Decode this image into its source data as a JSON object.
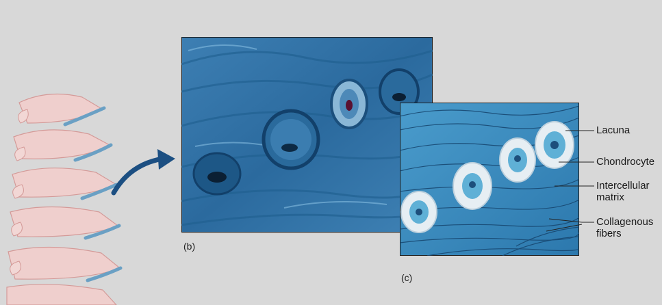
{
  "figure": {
    "panels": {
      "b": {
        "label": "(b)"
      },
      "c": {
        "label": "(c)"
      }
    },
    "labels": {
      "lacuna": "Lacuna",
      "chondrocyte": "Chondrocyte",
      "intercellular_matrix_line1": "Intercellular",
      "intercellular_matrix_line2": "matrix",
      "collagenous_fibers_line1": "Collagenous",
      "collagenous_fibers_line2": "fibers"
    },
    "colors": {
      "background": "#d8d8d8",
      "bone_pink": "#e8b6b3",
      "disc_blue": "#6aa0c4",
      "stain_dark": "#1f5f8f",
      "stain_light": "#5fb0d6",
      "arrow": "#1c4f82"
    }
  }
}
